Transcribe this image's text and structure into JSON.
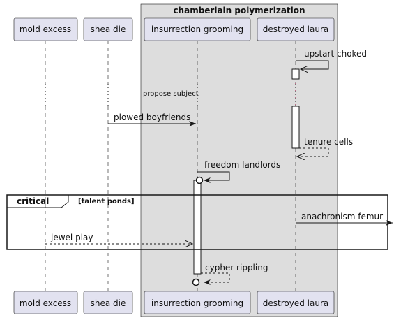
{
  "group": {
    "title": "chamberlain polymerization",
    "fill": "#dddddd"
  },
  "participants": [
    {
      "id": "p1",
      "label": "mold excess"
    },
    {
      "id": "p2",
      "label": "shea die"
    },
    {
      "id": "p3",
      "label": "insurrection grooming"
    },
    {
      "id": "p4",
      "label": "destroyed laura"
    }
  ],
  "messages": {
    "m1": "upstart choked",
    "m2": "plowed boyfriends",
    "m3": "tenure cells",
    "m4": "freedom landlords",
    "m5": "anachronism femur",
    "m6": "jewel play",
    "m7": "cypher rippling"
  },
  "delay_label": "propose subject",
  "fragment": {
    "keyword": "critical",
    "condition": "[talent ponds]"
  },
  "colors": {
    "participant_fill": "#e2e2f0",
    "line": "#181818",
    "delay_dots": "#a80036"
  }
}
